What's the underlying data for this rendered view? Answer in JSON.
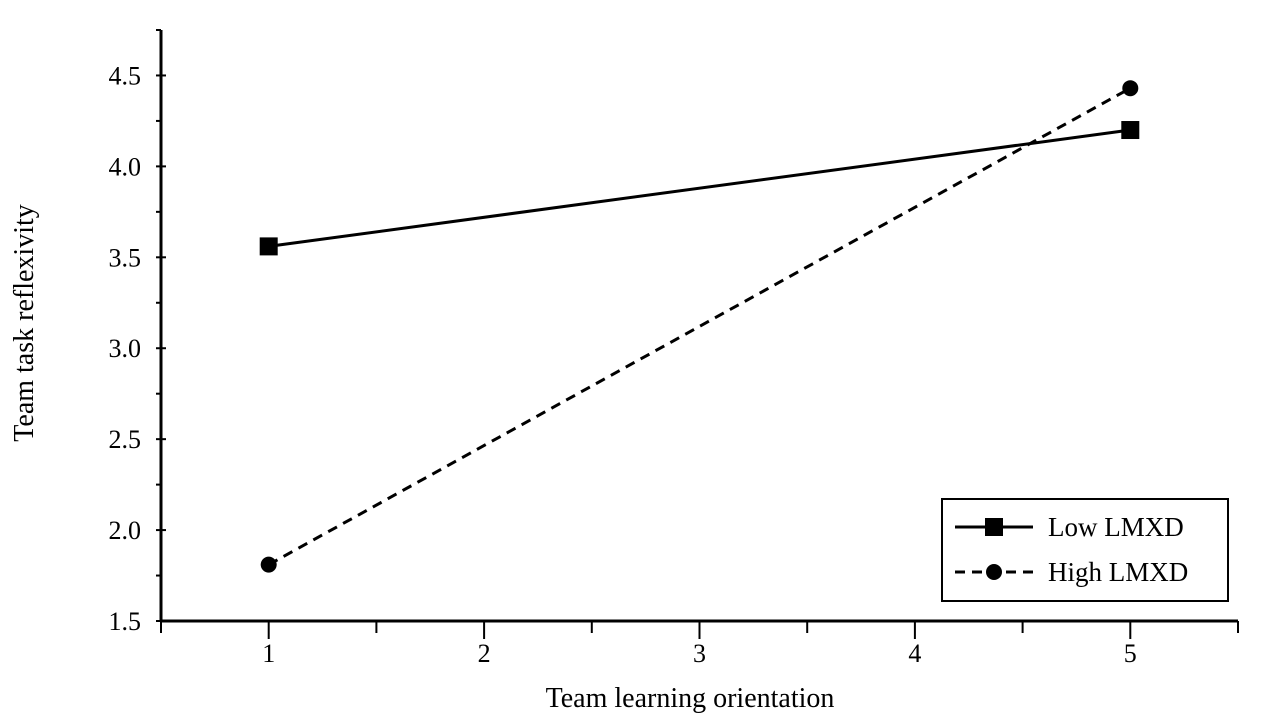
{
  "chart_data": {
    "type": "line",
    "xlabel": "Team learning orientation",
    "ylabel": "Team task reflexivity",
    "xlim": [
      0.5,
      5.5
    ],
    "ylim": [
      1.5,
      4.75
    ],
    "x_ticks": [
      1,
      2,
      3,
      4,
      5
    ],
    "x_tick_labels": [
      "1",
      "2",
      "3",
      "4",
      "5"
    ],
    "y_ticks": [
      1.5,
      2.0,
      2.5,
      3.0,
      3.5,
      4.0,
      4.5
    ],
    "y_tick_labels": [
      "1.5",
      "2.0",
      "2.5",
      "3.0",
      "3.5",
      "4.0",
      "4.5"
    ],
    "grid": false,
    "legend_position": "bottom-right",
    "series": [
      {
        "name": "Low LMXD",
        "x": [
          1,
          5
        ],
        "y": [
          3.56,
          4.2
        ],
        "line_style": "solid",
        "marker": "square",
        "color": "#000000"
      },
      {
        "name": "High LMXD",
        "x": [
          1,
          5
        ],
        "y": [
          1.81,
          4.43
        ],
        "line_style": "dashed",
        "marker": "circle",
        "color": "#000000"
      }
    ]
  }
}
